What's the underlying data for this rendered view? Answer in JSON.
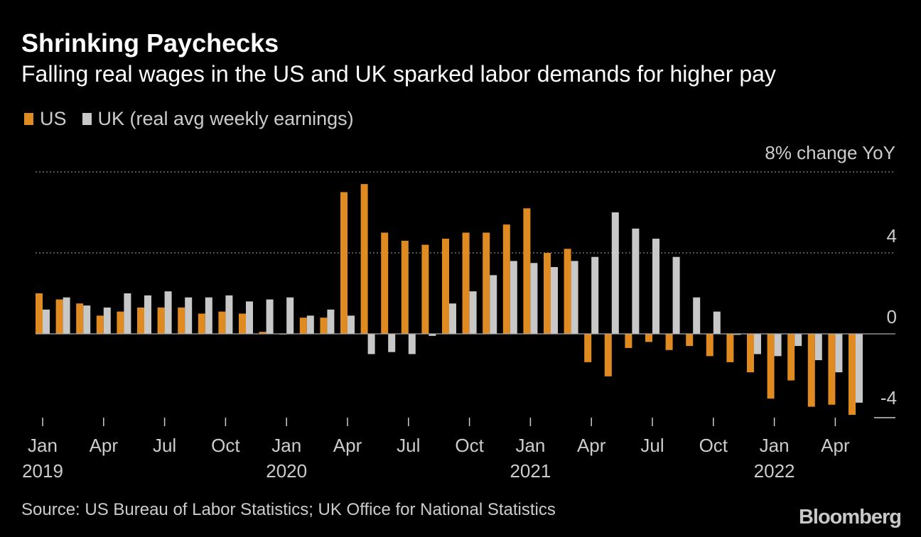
{
  "title": "Shrinking Paychecks",
  "subtitle": "Falling real wages in the US and UK sparked labor demands for higher pay",
  "source": "Source: US Bureau of Labor Statistics; UK Office for National Statistics",
  "brand": "Bloomberg",
  "colors": {
    "us": "#e08a22",
    "uk": "#c8c8c8",
    "background": "#000000"
  },
  "chart_data": {
    "type": "bar",
    "unit_label": "8% change YoY",
    "y_ticks": [
      "4",
      "0",
      "-4"
    ],
    "ylim": [
      -4,
      8
    ],
    "categories": [
      "2019-01",
      "2019-02",
      "2019-03",
      "2019-04",
      "2019-05",
      "2019-06",
      "2019-07",
      "2019-08",
      "2019-09",
      "2019-10",
      "2019-11",
      "2019-12",
      "2020-01",
      "2020-02",
      "2020-03",
      "2020-04",
      "2020-05",
      "2020-06",
      "2020-07",
      "2020-08",
      "2020-09",
      "2020-10",
      "2020-11",
      "2020-12",
      "2021-01",
      "2021-02",
      "2021-03",
      "2021-04",
      "2021-05",
      "2021-06",
      "2021-07",
      "2021-08",
      "2021-09",
      "2021-10",
      "2021-11",
      "2021-12",
      "2022-01",
      "2022-02",
      "2022-03",
      "2022-04",
      "2022-05"
    ],
    "x_tick_labels": [
      {
        "label": "Jan",
        "year": "2019",
        "index": 0
      },
      {
        "label": "Apr",
        "year": "",
        "index": 3
      },
      {
        "label": "Jul",
        "year": "",
        "index": 6
      },
      {
        "label": "Oct",
        "year": "",
        "index": 9
      },
      {
        "label": "Jan",
        "year": "2020",
        "index": 12
      },
      {
        "label": "Apr",
        "year": "",
        "index": 15
      },
      {
        "label": "Jul",
        "year": "",
        "index": 18
      },
      {
        "label": "Oct",
        "year": "",
        "index": 21
      },
      {
        "label": "Jan",
        "year": "2021",
        "index": 24
      },
      {
        "label": "Apr",
        "year": "",
        "index": 27
      },
      {
        "label": "Jul",
        "year": "",
        "index": 30
      },
      {
        "label": "Oct",
        "year": "",
        "index": 33
      },
      {
        "label": "Jan",
        "year": "2022",
        "index": 36
      },
      {
        "label": "Apr",
        "year": "",
        "index": 39
      }
    ],
    "series": [
      {
        "name": "US",
        "values": [
          2.0,
          1.7,
          1.5,
          0.9,
          1.1,
          1.3,
          1.3,
          1.3,
          1.0,
          1.1,
          1.0,
          0.1,
          0.0,
          0.8,
          0.8,
          7.0,
          7.4,
          5.0,
          4.6,
          4.4,
          4.7,
          5.0,
          5.0,
          5.4,
          6.2,
          4.0,
          4.2,
          -1.4,
          -2.1,
          -0.7,
          -0.4,
          -0.8,
          -0.6,
          -1.1,
          -1.4,
          -1.9,
          -3.2,
          -2.3,
          -3.6,
          -3.5,
          -4.0
        ]
      },
      {
        "name": "UK (real avg weekly earnings)",
        "values": [
          1.2,
          1.8,
          1.4,
          1.3,
          2.0,
          1.9,
          2.1,
          1.8,
          1.8,
          1.9,
          1.6,
          1.7,
          1.8,
          0.9,
          1.2,
          0.9,
          -1.0,
          -0.9,
          -1.0,
          -0.1,
          1.5,
          2.1,
          2.9,
          3.6,
          3.5,
          3.3,
          3.6,
          3.8,
          6.0,
          5.2,
          4.7,
          3.8,
          1.8,
          1.1,
          -0.05,
          -1.0,
          -1.1,
          -0.6,
          -1.3,
          -1.9,
          -3.4
        ]
      }
    ]
  }
}
